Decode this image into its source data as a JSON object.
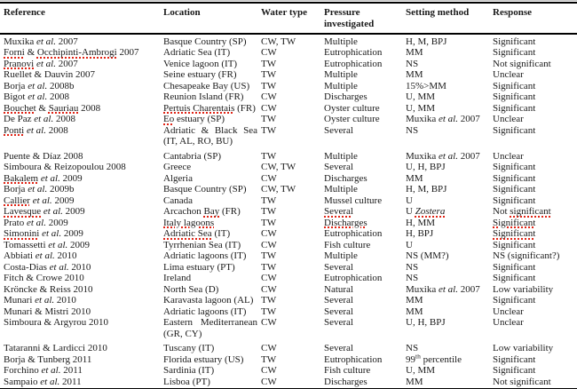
{
  "colors": {
    "page_bg": "#ffffff",
    "text": "#1a1a1a",
    "rule": "#000000",
    "hairline": "#c4c4c4",
    "squiggle": "#e02416"
  },
  "table": {
    "columns": [
      "Reference",
      "Location",
      "Water type",
      "Pressure investigated",
      "Setting method",
      "Response"
    ],
    "legend_styles": {
      "i": "italic",
      "r": "red-spellcheck-underline",
      "ir": "italic-red-underline",
      "sup": "superscript"
    },
    "rows": [
      [
        [
          [
            "Muxika "
          ],
          [
            "et al.",
            "i"
          ],
          [
            " 2007"
          ]
        ],
        [
          [
            "Basque Country (SP)"
          ]
        ],
        [
          [
            "CW, TW"
          ]
        ],
        [
          [
            "Multiple"
          ]
        ],
        [
          [
            "H, M, BPJ"
          ]
        ],
        [
          [
            "Significant"
          ]
        ]
      ],
      [
        [
          [
            "Forni",
            "r"
          ],
          [
            " & "
          ],
          [
            "Occhipinti-Ambrogi",
            "r"
          ],
          [
            " 2007"
          ]
        ],
        [
          [
            "Adriatic Sea (IT)"
          ]
        ],
        [
          [
            "CW"
          ]
        ],
        [
          [
            "Eutrophication"
          ]
        ],
        [
          [
            "MM"
          ]
        ],
        [
          [
            "Significant"
          ]
        ]
      ],
      [
        [
          [
            "Pranovi",
            "r"
          ],
          [
            " "
          ],
          [
            "et al.",
            "i"
          ],
          [
            " 2007"
          ]
        ],
        [
          [
            "Venice lagoon (IT)"
          ]
        ],
        [
          [
            "TW"
          ]
        ],
        [
          [
            "Eutrophication"
          ]
        ],
        [
          [
            "NS"
          ]
        ],
        [
          [
            "Not significant"
          ]
        ]
      ],
      [
        [
          [
            "Ruellet & Dauvin 2007"
          ]
        ],
        [
          [
            "Seine estuary (FR)"
          ]
        ],
        [
          [
            "TW"
          ]
        ],
        [
          [
            "Multiple"
          ]
        ],
        [
          [
            "MM"
          ]
        ],
        [
          [
            "Unclear"
          ]
        ]
      ],
      [
        [
          [
            "Borja "
          ],
          [
            "et al.",
            "i"
          ],
          [
            " 2008b"
          ]
        ],
        [
          [
            "Chesapeake Bay (US)"
          ]
        ],
        [
          [
            "TW"
          ]
        ],
        [
          [
            "Multiple"
          ]
        ],
        [
          [
            "15%>MM"
          ]
        ],
        [
          [
            "Significant"
          ]
        ]
      ],
      [
        [
          [
            "Bigot "
          ],
          [
            "et al.",
            "i"
          ],
          [
            " 2008"
          ]
        ],
        [
          [
            "Reunion Island (FR)"
          ]
        ],
        [
          [
            "CW"
          ]
        ],
        [
          [
            "Discharges"
          ]
        ],
        [
          [
            "U, MM"
          ]
        ],
        [
          [
            "Significant"
          ]
        ]
      ],
      [
        [
          [
            "Bouchet",
            "r"
          ],
          [
            " & "
          ],
          [
            "Sauriau",
            "r"
          ],
          [
            " 2008"
          ]
        ],
        [
          [
            "Pertuis Charentais",
            "r"
          ],
          [
            " (FR)"
          ]
        ],
        [
          [
            "CW"
          ]
        ],
        [
          [
            "Oyster culture"
          ]
        ],
        [
          [
            "U, MM"
          ]
        ],
        [
          [
            "Significant"
          ]
        ]
      ],
      [
        [
          [
            "De Paz "
          ],
          [
            "et al.",
            "i"
          ],
          [
            " 2008"
          ]
        ],
        [
          [
            "Eo",
            "r"
          ],
          [
            " estuary (SP)"
          ]
        ],
        [
          [
            "TW"
          ]
        ],
        [
          [
            "Oyster culture"
          ]
        ],
        [
          [
            "Muxika "
          ],
          [
            "et al.",
            "i"
          ],
          [
            " 2007"
          ]
        ],
        [
          [
            "Unclear"
          ]
        ]
      ],
      [
        [
          [
            "Ponti",
            "r"
          ],
          [
            " "
          ],
          [
            "et al.",
            "i"
          ],
          [
            " 2008"
          ]
        ],
        [
          [
            "Adriatic & Black Sea (IT, AL, RO, BU)"
          ]
        ],
        [
          [
            "TW"
          ]
        ],
        [
          [
            "Several"
          ]
        ],
        [
          [
            "NS"
          ]
        ],
        [
          [
            "Significant"
          ]
        ]
      ],
      [
        [
          [
            "Puente & Díaz 2008"
          ]
        ],
        [
          [
            "Cantabria (SP)"
          ]
        ],
        [
          [
            "TW"
          ]
        ],
        [
          [
            "Multiple"
          ]
        ],
        [
          [
            "Muxika "
          ],
          [
            "et al.",
            "i"
          ],
          [
            " 2007"
          ]
        ],
        [
          [
            "Unclear"
          ]
        ]
      ],
      [
        [
          [
            "Simboura & Reizopoulou 2008"
          ]
        ],
        [
          [
            "Greece"
          ]
        ],
        [
          [
            "CW, TW"
          ]
        ],
        [
          [
            "Several"
          ]
        ],
        [
          [
            "U, H, BPJ"
          ]
        ],
        [
          [
            "Significant"
          ]
        ]
      ],
      [
        [
          [
            "Bakalem",
            "r"
          ],
          [
            " "
          ],
          [
            "et al.",
            "i"
          ],
          [
            " 2009"
          ]
        ],
        [
          [
            "Algeria"
          ]
        ],
        [
          [
            "CW"
          ]
        ],
        [
          [
            "Discharges"
          ]
        ],
        [
          [
            "MM"
          ]
        ],
        [
          [
            "Significant"
          ]
        ]
      ],
      [
        [
          [
            "Borja "
          ],
          [
            "et al.",
            "i"
          ],
          [
            " 2009b"
          ]
        ],
        [
          [
            "Basque Country (SP)"
          ]
        ],
        [
          [
            "CW, TW"
          ]
        ],
        [
          [
            "Multiple"
          ]
        ],
        [
          [
            "H, M, BPJ"
          ]
        ],
        [
          [
            "Significant"
          ]
        ]
      ],
      [
        [
          [
            "Callier",
            "r"
          ],
          [
            " "
          ],
          [
            "et al.",
            "i"
          ],
          [
            " 2009"
          ]
        ],
        [
          [
            "Canada"
          ]
        ],
        [
          [
            "TW"
          ]
        ],
        [
          [
            "Mussel culture"
          ]
        ],
        [
          [
            "U"
          ]
        ],
        [
          [
            "Significant"
          ]
        ]
      ],
      [
        [
          [
            "Lavesque",
            "r"
          ],
          [
            " "
          ],
          [
            "et al.",
            "i"
          ],
          [
            " 2009"
          ]
        ],
        [
          [
            "Arcachon "
          ],
          [
            "Bay",
            "r"
          ],
          [
            " (FR)"
          ]
        ],
        [
          [
            "TW"
          ]
        ],
        [
          [
            "Several",
            "r"
          ]
        ],
        [
          [
            "U "
          ],
          [
            "Zostera",
            "ir"
          ]
        ],
        [
          [
            "Not "
          ],
          [
            "significant",
            "r"
          ]
        ]
      ],
      [
        [
          [
            "Prato "
          ],
          [
            "et al.",
            "i"
          ],
          [
            " 2009"
          ]
        ],
        [
          [
            "Italy lagoons",
            "r"
          ]
        ],
        [
          [
            "TW"
          ]
        ],
        [
          [
            "Discharges",
            "r"
          ]
        ],
        [
          [
            "H, MM"
          ]
        ],
        [
          [
            "Significant",
            "r"
          ]
        ]
      ],
      [
        [
          [
            "Simonini",
            "r"
          ],
          [
            " "
          ],
          [
            "et al.",
            "i"
          ],
          [
            " 2009"
          ]
        ],
        [
          [
            "Adriatic Sea",
            "r"
          ],
          [
            " (IT)"
          ]
        ],
        [
          [
            "CW"
          ]
        ],
        [
          [
            "Eutrophication"
          ]
        ],
        [
          [
            "H, BPJ"
          ]
        ],
        [
          [
            "Significant",
            "r"
          ]
        ]
      ],
      [
        [
          [
            "Tomassetti "
          ],
          [
            "et al.",
            "i"
          ],
          [
            " 2009"
          ]
        ],
        [
          [
            "Tyrrhenian Sea (IT)"
          ]
        ],
        [
          [
            "CW"
          ]
        ],
        [
          [
            "Fish culture"
          ]
        ],
        [
          [
            "U"
          ]
        ],
        [
          [
            "Significant"
          ]
        ]
      ],
      [
        [
          [
            "Abbiati "
          ],
          [
            "et al.",
            "i"
          ],
          [
            " 2010"
          ]
        ],
        [
          [
            "Adriatic lagoons (IT)"
          ]
        ],
        [
          [
            "TW"
          ]
        ],
        [
          [
            "Multiple"
          ]
        ],
        [
          [
            "NS (MM?)"
          ]
        ],
        [
          [
            "NS (significant?)"
          ]
        ]
      ],
      [
        [
          [
            "Costa-Dias "
          ],
          [
            "et al.",
            "i"
          ],
          [
            " 2010"
          ]
        ],
        [
          [
            "Lima estuary (PT)"
          ]
        ],
        [
          [
            "TW"
          ]
        ],
        [
          [
            "Several"
          ]
        ],
        [
          [
            "NS"
          ]
        ],
        [
          [
            "Significant"
          ]
        ]
      ],
      [
        [
          [
            "Fitch & Crowe 2010"
          ]
        ],
        [
          [
            "Ireland"
          ]
        ],
        [
          [
            "CW"
          ]
        ],
        [
          [
            "Eutrophication"
          ]
        ],
        [
          [
            "NS"
          ]
        ],
        [
          [
            "Significant"
          ]
        ]
      ],
      [
        [
          [
            "Kröncke & Reiss 2010"
          ]
        ],
        [
          [
            "North Sea (D)"
          ]
        ],
        [
          [
            "CW"
          ]
        ],
        [
          [
            "Natural"
          ]
        ],
        [
          [
            "Muxika "
          ],
          [
            "et al.",
            "i"
          ],
          [
            " 2007"
          ]
        ],
        [
          [
            "Low variability"
          ]
        ]
      ],
      [
        [
          [
            "Munari "
          ],
          [
            "et al.",
            "i"
          ],
          [
            " 2010"
          ]
        ],
        [
          [
            "Karavasta lagoon (AL)"
          ]
        ],
        [
          [
            "TW"
          ]
        ],
        [
          [
            "Several"
          ]
        ],
        [
          [
            "MM"
          ]
        ],
        [
          [
            "Significant"
          ]
        ]
      ],
      [
        [
          [
            "Munari & Mistri 2010"
          ]
        ],
        [
          [
            "Adriatic lagoons (IT)"
          ]
        ],
        [
          [
            "TW"
          ]
        ],
        [
          [
            "Several"
          ]
        ],
        [
          [
            "MM"
          ]
        ],
        [
          [
            "Unclear"
          ]
        ]
      ],
      [
        [
          [
            "Simboura & Argyrou 2010"
          ]
        ],
        [
          [
            "Eastern Mediterranean (GR, CY)"
          ]
        ],
        [
          [
            "CW"
          ]
        ],
        [
          [
            "Several"
          ]
        ],
        [
          [
            "U, H, BPJ"
          ]
        ],
        [
          [
            "Unclear"
          ]
        ]
      ],
      [
        [
          [
            "Tataranni & Lardicci 2010"
          ]
        ],
        [
          [
            "Tuscany (IT)"
          ]
        ],
        [
          [
            "CW"
          ]
        ],
        [
          [
            "Several"
          ]
        ],
        [
          [
            "NS"
          ]
        ],
        [
          [
            "Low variability"
          ]
        ]
      ],
      [
        [
          [
            "Borja & Tunberg 2011"
          ]
        ],
        [
          [
            "Florida estuary (US)"
          ]
        ],
        [
          [
            "TW"
          ]
        ],
        [
          [
            "Eutrophication"
          ]
        ],
        [
          [
            "99"
          ],
          [
            "th",
            "sup"
          ],
          [
            " percentile"
          ]
        ],
        [
          [
            "Significant"
          ]
        ]
      ],
      [
        [
          [
            "Forchino "
          ],
          [
            "et al.",
            "i"
          ],
          [
            " 2011"
          ]
        ],
        [
          [
            "Sardinia (IT)"
          ]
        ],
        [
          [
            "CW"
          ]
        ],
        [
          [
            "Fish culture"
          ]
        ],
        [
          [
            "U, MM"
          ]
        ],
        [
          [
            "Significant"
          ]
        ]
      ],
      [
        [
          [
            "Sampaio "
          ],
          [
            "et al.",
            "i"
          ],
          [
            " 2011"
          ]
        ],
        [
          [
            "Lisboa (PT)"
          ]
        ],
        [
          [
            "CW"
          ]
        ],
        [
          [
            "Discharges"
          ]
        ],
        [
          [
            "MM"
          ]
        ],
        [
          [
            "Not significant"
          ]
        ]
      ]
    ]
  }
}
